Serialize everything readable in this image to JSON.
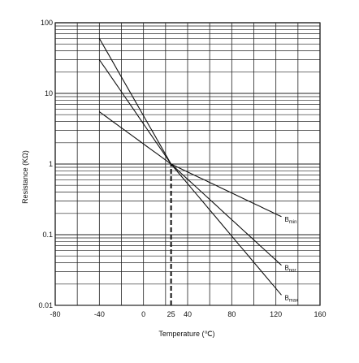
{
  "chart_data": {
    "type": "line",
    "title": "",
    "xlabel": "Temperature (℃)",
    "ylabel": "Resistance (KΩ)",
    "xlim": [
      -80,
      160
    ],
    "ylim": [
      0.01,
      100
    ],
    "y_scale": "log",
    "x_tick_labels": [
      {
        "value": -80,
        "label": "-80"
      },
      {
        "value": -40,
        "label": "-40"
      },
      {
        "value": 0,
        "label": "0"
      },
      {
        "value": 25,
        "label": "25"
      },
      {
        "value": 40,
        "label": "40"
      },
      {
        "value": 80,
        "label": "80"
      },
      {
        "value": 120,
        "label": "120"
      },
      {
        "value": 160,
        "label": "160"
      }
    ],
    "y_tick_labels": [
      {
        "value": 0.01,
        "label": "0.01"
      },
      {
        "value": 0.1,
        "label": "0.1"
      },
      {
        "value": 1,
        "label": "1"
      },
      {
        "value": 10,
        "label": "10"
      },
      {
        "value": 100,
        "label": "100"
      }
    ],
    "grid": true,
    "reference_line": {
      "x": 25,
      "from_y": 0.01,
      "to_y": 1,
      "style": "dashed"
    },
    "series": [
      {
        "name": "Bmin",
        "label_main": "B",
        "label_sub": "min",
        "x": [
          -40,
          25,
          125
        ],
        "y": [
          5.5,
          1.0,
          0.18
        ]
      },
      {
        "name": "Bnor",
        "label_main": "B",
        "label_sub": "nor",
        "x": [
          -40,
          25,
          125
        ],
        "y": [
          30,
          1.0,
          0.037
        ]
      },
      {
        "name": "Bmax",
        "label_main": "B",
        "label_sub": "max",
        "x": [
          -40,
          25,
          125
        ],
        "y": [
          60,
          1.0,
          0.014
        ]
      }
    ],
    "colors": {
      "line": "#111111",
      "grid": "#222222",
      "background": "#ffffff"
    }
  }
}
